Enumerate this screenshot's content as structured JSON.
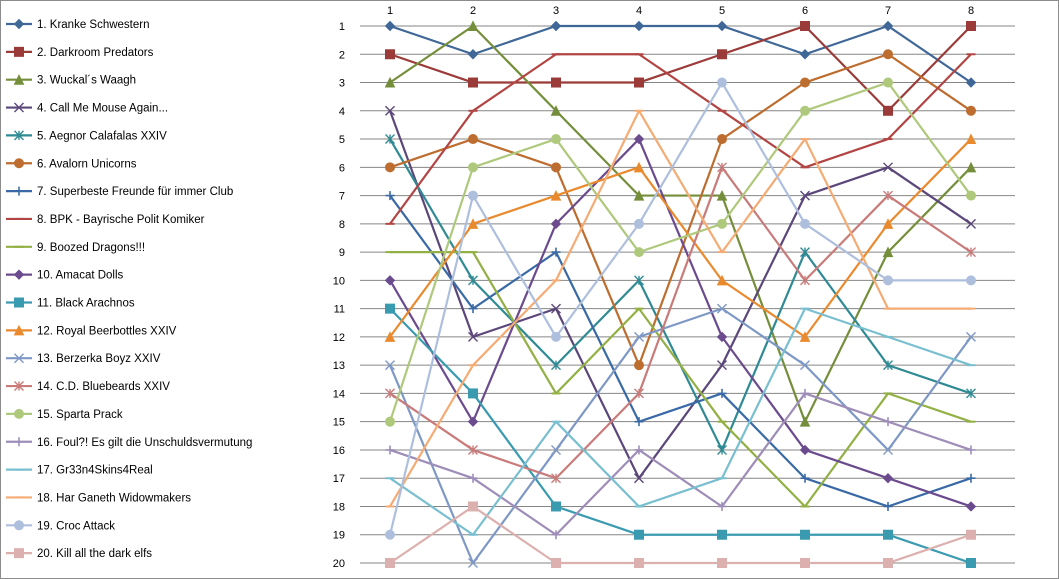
{
  "chart_data": {
    "type": "line",
    "title": "",
    "xlabel": "",
    "ylabel": "",
    "x": [
      1,
      2,
      3,
      4,
      5,
      6,
      7,
      8
    ],
    "y_ticks": [
      1,
      2,
      3,
      4,
      5,
      6,
      7,
      8,
      9,
      10,
      11,
      12,
      13,
      14,
      15,
      16,
      17,
      18,
      19,
      20
    ],
    "ylim": [
      1,
      20
    ],
    "y_inverted": true,
    "grid": "horizontal",
    "legend_position": "left",
    "series": [
      {
        "name": "1. Kranke Schwestern",
        "color": "#3f6797",
        "marker": "diamond",
        "values": [
          1,
          2,
          1,
          1,
          1,
          2,
          1,
          3
        ]
      },
      {
        "name": "2. Darkroom Predators",
        "color": "#9b3b39",
        "marker": "square",
        "values": [
          2,
          3,
          3,
          3,
          2,
          1,
          4,
          1
        ]
      },
      {
        "name": "3. Wuckal´s Waagh",
        "color": "#758e3b",
        "marker": "triangle",
        "values": [
          3,
          1,
          4,
          7,
          7,
          15,
          9,
          6
        ]
      },
      {
        "name": "4. Call Me Mouse Again...",
        "color": "#5b4779",
        "marker": "x",
        "values": [
          4,
          12,
          11,
          17,
          13,
          7,
          6,
          8
        ]
      },
      {
        "name": "5. Aegnor Calafalas XXIV",
        "color": "#2f8a94",
        "marker": "star",
        "values": [
          5,
          10,
          13,
          10,
          16,
          9,
          13,
          14
        ]
      },
      {
        "name": "6. Avalorn Unicorns",
        "color": "#bd6d2f",
        "marker": "circle",
        "values": [
          6,
          5,
          6,
          13,
          5,
          3,
          2,
          4
        ]
      },
      {
        "name": "7. Superbeste Freunde für immer Club",
        "color": "#3a6aa5",
        "marker": "plus",
        "values": [
          7,
          11,
          9,
          15,
          14,
          17,
          18,
          17
        ]
      },
      {
        "name": "8. BPK - Bayrische Polit Komiker",
        "color": "#b24544",
        "marker": "dash",
        "values": [
          8,
          4,
          2,
          2,
          4,
          6,
          5,
          2
        ]
      },
      {
        "name": "9. Boozed Dragons!!!",
        "color": "#92b044",
        "marker": "dash",
        "values": [
          9,
          9,
          14,
          11,
          15,
          18,
          14,
          15
        ]
      },
      {
        "name": "10. Amacat Dolls",
        "color": "#6b4b8e",
        "marker": "diamond",
        "values": [
          10,
          15,
          8,
          5,
          12,
          16,
          17,
          18
        ]
      },
      {
        "name": "11. Black Arachnos",
        "color": "#3a9ab0",
        "marker": "square",
        "values": [
          11,
          14,
          18,
          19,
          19,
          19,
          19,
          20
        ]
      },
      {
        "name": "12. Royal Beerbottles XXIV",
        "color": "#ea8a2e",
        "marker": "triangle",
        "values": [
          12,
          8,
          7,
          6,
          10,
          12,
          8,
          5
        ]
      },
      {
        "name": "13. Berzerka Boyz XXIV",
        "color": "#7e98c6",
        "marker": "x",
        "values": [
          13,
          20,
          16,
          12,
          11,
          13,
          16,
          12
        ]
      },
      {
        "name": "14. C.D. Bluebeards XXIV",
        "color": "#c97b7a",
        "marker": "star",
        "values": [
          14,
          16,
          17,
          14,
          6,
          10,
          7,
          9
        ]
      },
      {
        "name": "15. Sparta Prack",
        "color": "#afc97c",
        "marker": "circle",
        "values": [
          15,
          6,
          5,
          9,
          8,
          4,
          3,
          7
        ]
      },
      {
        "name": "16. Foul?! Es gilt die Unschuldsvermutung",
        "color": "#9e8db8",
        "marker": "plus",
        "values": [
          16,
          17,
          19,
          16,
          18,
          14,
          15,
          16
        ]
      },
      {
        "name": "17. Gr33n4Skins4Real",
        "color": "#79bfd0",
        "marker": "dash",
        "values": [
          17,
          19,
          15,
          18,
          17,
          11,
          12,
          13
        ]
      },
      {
        "name": "18. Har Ganeth Widowmakers",
        "color": "#f5ab74",
        "marker": "dash",
        "values": [
          18,
          13,
          10,
          4,
          9,
          5,
          11,
          11
        ]
      },
      {
        "name": "19. Croc Attack",
        "color": "#aebfde",
        "marker": "circle",
        "values": [
          19,
          7,
          12,
          8,
          3,
          8,
          10,
          10
        ]
      },
      {
        "name": "20. Kill all the dark elfs",
        "color": "#dcb0ae",
        "marker": "square",
        "values": [
          20,
          18,
          20,
          20,
          20,
          20,
          20,
          19
        ]
      }
    ]
  }
}
